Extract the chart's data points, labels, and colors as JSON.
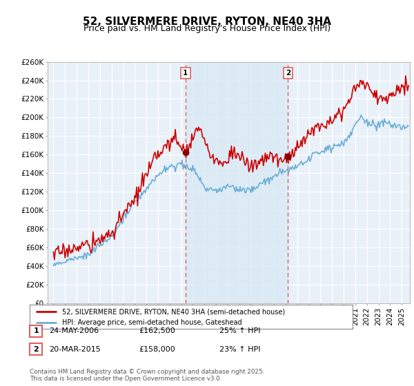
{
  "title": "52, SILVERMERE DRIVE, RYTON, NE40 3HA",
  "subtitle": "Price paid vs. HM Land Registry's House Price Index (HPI)",
  "legend_line1": "52, SILVERMERE DRIVE, RYTON, NE40 3HA (semi-detached house)",
  "legend_line2": "HPI: Average price, semi-detached house, Gateshead",
  "footer": "Contains HM Land Registry data © Crown copyright and database right 2025.\nThis data is licensed under the Open Government Licence v3.0.",
  "sale1_label": "1",
  "sale1_date": "24-MAY-2006",
  "sale1_price": "£162,500",
  "sale1_hpi": "25% ↑ HPI",
  "sale1_year": 2006.38,
  "sale1_price_val": 162500,
  "sale2_label": "2",
  "sale2_date": "20-MAR-2015",
  "sale2_price": "£158,000",
  "sale2_hpi": "23% ↑ HPI",
  "sale2_year": 2015.21,
  "sale2_price_val": 158000,
  "ylim": [
    0,
    260000
  ],
  "ytick_max": 260000,
  "ytick_step": 20000,
  "xlim_start": 1994.5,
  "xlim_end": 2025.7,
  "property_color": "#cc0000",
  "hpi_color": "#6baed6",
  "shade_color": "#daeaf5",
  "plot_bg_color": "#e8f0f8",
  "grid_color": "#ffffff",
  "vline_color": "#e06060",
  "dot_color": "#8b0000",
  "title_fontsize": 11,
  "subtitle_fontsize": 9,
  "tick_fontsize": 7.5
}
